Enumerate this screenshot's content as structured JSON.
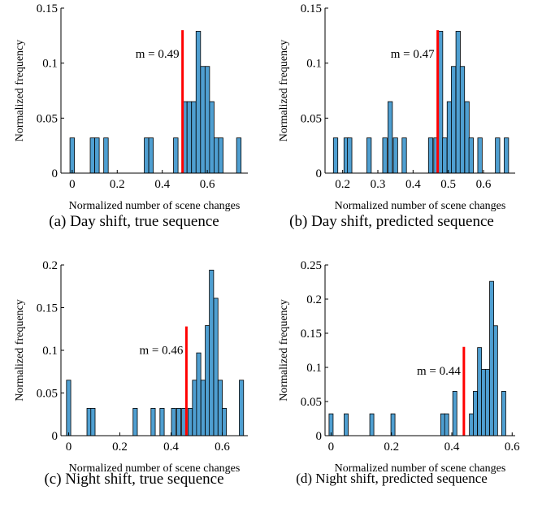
{
  "chart_data": [
    {
      "type": "bar",
      "caption": "(a) Day shift, true sequence",
      "xlabel": "Normalized number of scene changes",
      "ylabel": "Normalized frequency",
      "xlim": [
        -0.05,
        0.78
      ],
      "ylim": [
        0,
        0.15
      ],
      "xticks": [
        0,
        0.2,
        0.4,
        0.6
      ],
      "xtick_labels": [
        "0",
        "0.2",
        "0.4",
        "0.6"
      ],
      "yticks": [
        0,
        0.05,
        0.1,
        0.15
      ],
      "ytick_labels": [
        "0",
        "0.05",
        "0.1",
        "0.15"
      ],
      "bin_width": 0.02,
      "bars": [
        {
          "x": 0.0,
          "y": 0.032
        },
        {
          "x": 0.09,
          "y": 0.032
        },
        {
          "x": 0.11,
          "y": 0.032
        },
        {
          "x": 0.15,
          "y": 0.032
        },
        {
          "x": 0.33,
          "y": 0.032
        },
        {
          "x": 0.35,
          "y": 0.032
        },
        {
          "x": 0.46,
          "y": 0.032
        },
        {
          "x": 0.5,
          "y": 0.065
        },
        {
          "x": 0.52,
          "y": 0.065
        },
        {
          "x": 0.54,
          "y": 0.065
        },
        {
          "x": 0.56,
          "y": 0.129
        },
        {
          "x": 0.58,
          "y": 0.097
        },
        {
          "x": 0.6,
          "y": 0.097
        },
        {
          "x": 0.62,
          "y": 0.065
        },
        {
          "x": 0.64,
          "y": 0.032
        },
        {
          "x": 0.66,
          "y": 0.032
        },
        {
          "x": 0.74,
          "y": 0.032
        }
      ],
      "mean": {
        "x": 0.49,
        "height": 0.13,
        "label": "m = 0.49",
        "color": "#ff0000"
      }
    },
    {
      "type": "bar",
      "caption": "(b) Day shift, predicted sequence",
      "xlabel": "Normalized number of scene changes",
      "ylabel": "Normalized frequency",
      "xlim": [
        0.15,
        0.69
      ],
      "ylim": [
        0,
        0.15
      ],
      "xticks": [
        0.2,
        0.3,
        0.4,
        0.5,
        0.6
      ],
      "xtick_labels": [
        "0.2",
        "0.3",
        "0.4",
        "0.5",
        "0.6"
      ],
      "yticks": [
        0,
        0.05,
        0.1,
        0.15
      ],
      "ytick_labels": [
        "0",
        "0.05",
        "0.1",
        "0.15"
      ],
      "bin_width": 0.0125,
      "bars": [
        {
          "x": 0.18,
          "y": 0.032
        },
        {
          "x": 0.21,
          "y": 0.032
        },
        {
          "x": 0.22,
          "y": 0.032
        },
        {
          "x": 0.275,
          "y": 0.032
        },
        {
          "x": 0.32,
          "y": 0.032
        },
        {
          "x": 0.335,
          "y": 0.065
        },
        {
          "x": 0.35,
          "y": 0.032
        },
        {
          "x": 0.375,
          "y": 0.032
        },
        {
          "x": 0.45,
          "y": 0.032
        },
        {
          "x": 0.465,
          "y": 0.032
        },
        {
          "x": 0.478,
          "y": 0.129
        },
        {
          "x": 0.49,
          "y": 0.032
        },
        {
          "x": 0.503,
          "y": 0.065
        },
        {
          "x": 0.515,
          "y": 0.097
        },
        {
          "x": 0.528,
          "y": 0.129
        },
        {
          "x": 0.54,
          "y": 0.097
        },
        {
          "x": 0.553,
          "y": 0.065
        },
        {
          "x": 0.565,
          "y": 0.032
        },
        {
          "x": 0.59,
          "y": 0.032
        },
        {
          "x": 0.64,
          "y": 0.032
        },
        {
          "x": 0.665,
          "y": 0.032
        }
      ],
      "mean": {
        "x": 0.47,
        "height": 0.13,
        "label": "m = 0.47",
        "color": "#ff0000"
      }
    },
    {
      "type": "bar",
      "caption": "(c) Night shift, true sequence",
      "xlabel": "Normalized number of scene changes",
      "ylabel": "Normalized frequency",
      "xlim": [
        -0.03,
        0.7
      ],
      "ylim": [
        0,
        0.2
      ],
      "xticks": [
        0,
        0.2,
        0.4,
        0.6
      ],
      "xtick_labels": [
        "0",
        "0.2",
        "0.4",
        "0.6"
      ],
      "yticks": [
        0,
        0.05,
        0.1,
        0.15,
        0.2
      ],
      "ytick_labels": [
        "0",
        "0.05",
        "0.1",
        "0.15",
        "0.2"
      ],
      "bin_width": 0.0167,
      "bars": [
        {
          "x": 0.0,
          "y": 0.065
        },
        {
          "x": 0.08,
          "y": 0.032
        },
        {
          "x": 0.095,
          "y": 0.032
        },
        {
          "x": 0.26,
          "y": 0.032
        },
        {
          "x": 0.33,
          "y": 0.032
        },
        {
          "x": 0.365,
          "y": 0.032
        },
        {
          "x": 0.41,
          "y": 0.032
        },
        {
          "x": 0.43,
          "y": 0.032
        },
        {
          "x": 0.45,
          "y": 0.032
        },
        {
          "x": 0.475,
          "y": 0.032
        },
        {
          "x": 0.492,
          "y": 0.065
        },
        {
          "x": 0.508,
          "y": 0.097
        },
        {
          "x": 0.525,
          "y": 0.065
        },
        {
          "x": 0.542,
          "y": 0.129
        },
        {
          "x": 0.558,
          "y": 0.194
        },
        {
          "x": 0.575,
          "y": 0.161
        },
        {
          "x": 0.592,
          "y": 0.065
        },
        {
          "x": 0.608,
          "y": 0.032
        },
        {
          "x": 0.675,
          "y": 0.065
        }
      ],
      "mean": {
        "x": 0.46,
        "height": 0.128,
        "label": "m = 0.46",
        "color": "#ff0000"
      }
    },
    {
      "type": "bar",
      "caption": "(d) Night shift, predicted sequence",
      "xlabel": "Normalized number of scene changes",
      "ylabel": "Normalized frequency",
      "xlim": [
        -0.02,
        0.61
      ],
      "ylim": [
        0,
        0.25
      ],
      "xticks": [
        0,
        0.2,
        0.4,
        0.6
      ],
      "xtick_labels": [
        "0",
        "0.2",
        "0.4",
        "0.6"
      ],
      "yticks": [
        0,
        0.05,
        0.1,
        0.15,
        0.2,
        0.25
      ],
      "ytick_labels": [
        "0",
        "0.05",
        "0.1",
        "0.15",
        "0.2",
        "0.25"
      ],
      "bin_width": 0.0135,
      "bars": [
        {
          "x": 0.0,
          "y": 0.032
        },
        {
          "x": 0.05,
          "y": 0.032
        },
        {
          "x": 0.135,
          "y": 0.032
        },
        {
          "x": 0.205,
          "y": 0.032
        },
        {
          "x": 0.37,
          "y": 0.032
        },
        {
          "x": 0.383,
          "y": 0.032
        },
        {
          "x": 0.41,
          "y": 0.065
        },
        {
          "x": 0.465,
          "y": 0.032
        },
        {
          "x": 0.478,
          "y": 0.065
        },
        {
          "x": 0.492,
          "y": 0.129
        },
        {
          "x": 0.505,
          "y": 0.097
        },
        {
          "x": 0.518,
          "y": 0.097
        },
        {
          "x": 0.532,
          "y": 0.226
        },
        {
          "x": 0.545,
          "y": 0.161
        },
        {
          "x": 0.572,
          "y": 0.065
        }
      ],
      "mean": {
        "x": 0.44,
        "height": 0.13,
        "label": "m = 0.44",
        "color": "#ff0000"
      }
    }
  ],
  "colors": {
    "bar_fill": "#4f9fd1",
    "bar_stroke": "#000000",
    "mean_line": "#ff0000"
  }
}
